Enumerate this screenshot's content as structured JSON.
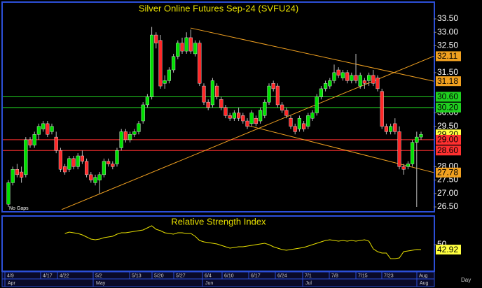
{
  "chart_data": {
    "type": "candlestick",
    "title": "Silver Online Futures Sep-24 (SVFU24)",
    "note": "No Gaps",
    "up_color": "#00e000",
    "down_color": "#ff2828",
    "ylim": [
      26.5,
      33.5
    ],
    "yticks": [
      {
        "value": 33.5,
        "label": "33.50"
      },
      {
        "value": 33,
        "label": "33.00"
      },
      {
        "value": 32.5,
        "label": "32.50"
      },
      {
        "value": 31.5,
        "label": "31.50"
      },
      {
        "value": 30,
        "label": "30.00"
      },
      {
        "value": 29.5,
        "label": "29.50"
      },
      {
        "value": 28,
        "label": "28.00"
      },
      {
        "value": 27.5,
        "label": "27.50"
      },
      {
        "value": 27,
        "label": "27.00"
      },
      {
        "value": 26.5,
        "label": "26.50"
      }
    ],
    "candles": [
      [
        26.6,
        27.5,
        26.5,
        27.4
      ],
      [
        27.4,
        28.0,
        27.3,
        27.9
      ],
      [
        27.9,
        28.1,
        27.6,
        27.7
      ],
      [
        27.8,
        28.0,
        27.4,
        27.6
      ],
      [
        27.7,
        29.1,
        27.6,
        29.0
      ],
      [
        29.0,
        29.1,
        28.7,
        28.8
      ],
      [
        28.8,
        29.3,
        28.7,
        29.2
      ],
      [
        29.2,
        29.6,
        29.0,
        29.5
      ],
      [
        29.4,
        29.7,
        29.3,
        29.6
      ],
      [
        29.6,
        29.7,
        29.1,
        29.2
      ],
      [
        29.3,
        29.6,
        29.2,
        29.5
      ],
      [
        29.1,
        29.3,
        28.5,
        28.6
      ],
      [
        28.6,
        28.7,
        27.8,
        27.9
      ],
      [
        28.0,
        28.1,
        27.7,
        27.8
      ],
      [
        27.9,
        28.4,
        27.8,
        28.3
      ],
      [
        28.3,
        28.4,
        27.9,
        28.0
      ],
      [
        28.0,
        28.5,
        27.9,
        28.4
      ],
      [
        28.4,
        28.6,
        28.1,
        28.2
      ],
      [
        28.2,
        28.3,
        27.6,
        27.7
      ],
      [
        27.7,
        27.8,
        27.4,
        27.5
      ],
      [
        27.4,
        27.7,
        27.3,
        27.6
      ],
      [
        27.5,
        27.8,
        27.0,
        27.7
      ],
      [
        27.7,
        28.3,
        27.6,
        28.2
      ],
      [
        28.2,
        28.3,
        28.0,
        28.1
      ],
      [
        28.1,
        28.2,
        27.9,
        28.0
      ],
      [
        28.1,
        28.7,
        28.0,
        28.6
      ],
      [
        28.7,
        29.4,
        28.6,
        29.3
      ],
      [
        29.3,
        29.4,
        28.9,
        29.0
      ],
      [
        29.0,
        29.3,
        28.9,
        29.2
      ],
      [
        29.2,
        29.4,
        29.1,
        29.3
      ],
      [
        29.3,
        29.7,
        29.2,
        29.6
      ],
      [
        29.7,
        30.4,
        29.6,
        30.3
      ],
      [
        30.3,
        30.7,
        30.2,
        30.6
      ],
      [
        30.6,
        33.2,
        30.5,
        32.9
      ],
      [
        32.9,
        33.0,
        32.4,
        32.6
      ],
      [
        32.7,
        32.9,
        30.9,
        31.0
      ],
      [
        31.1,
        31.4,
        30.9,
        31.2
      ],
      [
        31.2,
        31.7,
        31.1,
        31.6
      ],
      [
        31.6,
        32.2,
        31.5,
        32.1
      ],
      [
        32.1,
        32.7,
        32.0,
        32.6
      ],
      [
        32.6,
        32.8,
        32.2,
        32.3
      ],
      [
        32.3,
        33.0,
        32.2,
        32.8
      ],
      [
        32.8,
        33.1,
        32.2,
        32.3
      ],
      [
        32.2,
        32.7,
        32.1,
        32.6
      ],
      [
        32.6,
        32.7,
        31.0,
        31.1
      ],
      [
        31.0,
        31.1,
        30.3,
        30.4
      ],
      [
        30.4,
        30.5,
        30.1,
        30.2
      ],
      [
        30.3,
        31.3,
        30.2,
        31.2
      ],
      [
        31.0,
        31.1,
        30.5,
        30.6
      ],
      [
        30.5,
        30.6,
        30.1,
        30.2
      ],
      [
        30.2,
        30.3,
        29.8,
        29.9
      ],
      [
        29.9,
        30.0,
        29.7,
        29.8
      ],
      [
        29.8,
        30.1,
        29.7,
        30.0
      ],
      [
        30.0,
        30.2,
        29.7,
        29.8
      ],
      [
        29.9,
        30.0,
        29.6,
        29.7
      ],
      [
        29.7,
        29.8,
        29.4,
        29.5
      ],
      [
        29.6,
        30.1,
        29.5,
        30.0
      ],
      [
        29.8,
        29.9,
        29.5,
        29.6
      ],
      [
        29.7,
        30.2,
        29.6,
        30.1
      ],
      [
        29.9,
        30.5,
        29.8,
        30.4
      ],
      [
        30.4,
        31.1,
        30.3,
        31.0
      ],
      [
        31.1,
        31.2,
        30.8,
        30.9
      ],
      [
        31.0,
        31.1,
        30.2,
        30.3
      ],
      [
        30.3,
        30.4,
        30.0,
        30.1
      ],
      [
        30.1,
        30.2,
        29.8,
        29.9
      ],
      [
        29.8,
        29.9,
        29.4,
        29.5
      ],
      [
        29.5,
        29.6,
        29.2,
        29.3
      ],
      [
        29.4,
        29.9,
        29.3,
        29.8
      ],
      [
        29.6,
        29.7,
        29.3,
        29.4
      ],
      [
        29.5,
        30.0,
        29.4,
        29.9
      ],
      [
        29.8,
        30.1,
        29.7,
        30.0
      ],
      [
        30.0,
        30.7,
        29.9,
        30.6
      ],
      [
        30.6,
        31.0,
        30.5,
        30.9
      ],
      [
        30.9,
        31.2,
        30.8,
        31.1
      ],
      [
        31.0,
        31.3,
        30.9,
        31.2
      ],
      [
        31.2,
        31.8,
        31.1,
        31.5
      ],
      [
        31.6,
        31.7,
        31.3,
        31.4
      ],
      [
        31.3,
        31.6,
        31.2,
        31.5
      ],
      [
        31.5,
        31.6,
        31.1,
        31.2
      ],
      [
        31.2,
        31.5,
        31.1,
        31.4
      ],
      [
        31.4,
        32.2,
        31.1,
        31.2
      ],
      [
        31.0,
        31.5,
        30.9,
        31.4
      ],
      [
        31.2,
        31.3,
        30.9,
        31.1
      ],
      [
        31.2,
        31.5,
        31.0,
        31.4
      ],
      [
        31.4,
        31.6,
        31.0,
        31.1
      ],
      [
        31.3,
        31.4,
        30.8,
        30.9
      ],
      [
        30.8,
        30.9,
        29.4,
        29.5
      ],
      [
        29.5,
        29.6,
        29.2,
        29.3
      ],
      [
        29.3,
        29.6,
        29.2,
        29.5
      ],
      [
        29.6,
        29.8,
        29.2,
        29.3
      ],
      [
        29.3,
        29.5,
        27.9,
        28.0
      ],
      [
        28.0,
        28.1,
        27.7,
        27.9
      ],
      [
        28.0,
        28.2,
        27.9,
        28.1
      ],
      [
        28.1,
        29.0,
        28.0,
        28.9
      ],
      [
        28.9,
        29.3,
        26.5,
        29.1
      ],
      [
        29.1,
        29.3,
        29.0,
        29.2
      ]
    ],
    "levels": [
      {
        "value": 32.11,
        "label": "32.11",
        "color": "#f0a020",
        "line": false
      },
      {
        "value": 31.18,
        "label": "31.18",
        "color": "#f0a020",
        "line": false
      },
      {
        "value": 30.6,
        "label": "30.60",
        "color": "#20d020",
        "line": true
      },
      {
        "value": 30.2,
        "label": "30.20",
        "color": "#20d020",
        "line": true
      },
      {
        "value": 29.2,
        "label": "29.20",
        "color": "#ffff40",
        "line": false
      },
      {
        "value": 29.0,
        "label": "29.00",
        "color": "#ff3030",
        "line": true
      },
      {
        "value": 28.6,
        "label": "28.60",
        "color": "#ff3030",
        "line": true
      },
      {
        "value": 27.78,
        "label": "27.78",
        "color": "#f0a020",
        "line": false
      }
    ],
    "trendlines": [
      {
        "start": 33.16,
        "end": 31.18,
        "color": "#f0a020"
      },
      {
        "start": 26.4,
        "end": 32.11,
        "color": "#f0a020"
      },
      {
        "start": 29.52,
        "end": 27.78,
        "color": "#f0a020"
      }
    ],
    "dates": [
      "4/9",
      "4/17",
      "4/22",
      "5/2",
      "5/13",
      "5/20",
      "5/27",
      "6/4",
      "6/10",
      "6/17",
      "6/24",
      "7/1",
      "7/8",
      "7/15",
      "7/23",
      "Aug"
    ],
    "months": [
      "Apr",
      "May",
      "Jun",
      "Jul",
      "Aug"
    ],
    "x_unit": "Day",
    "rsi": {
      "title": "Relative Strength Index",
      "color": "#e8e000",
      "ylim": [
        12,
        88
      ],
      "yticks": [
        50
      ],
      "label": {
        "value": 42.92,
        "label": "42.92",
        "color": "#ffff40"
      },
      "values": [
        null,
        null,
        null,
        null,
        null,
        null,
        null,
        null,
        null,
        null,
        null,
        null,
        null,
        66,
        68,
        67,
        66,
        64,
        61,
        58,
        57,
        58,
        60,
        61,
        62,
        65,
        67,
        67,
        68,
        69,
        70,
        71,
        74,
        77,
        72,
        70,
        67,
        66,
        65,
        67,
        67,
        66,
        66,
        62,
        56,
        54,
        53,
        52,
        51,
        49,
        47,
        45,
        46,
        47,
        47,
        48,
        49,
        50,
        51,
        52,
        50,
        47,
        45,
        43,
        42,
        43,
        44,
        45,
        46,
        48,
        50,
        52,
        54,
        56,
        57,
        56,
        55,
        56,
        55,
        56,
        55,
        56,
        57,
        55,
        44,
        40,
        38,
        38,
        30,
        30,
        31,
        40,
        41,
        42,
        43,
        42.92
      ]
    }
  }
}
